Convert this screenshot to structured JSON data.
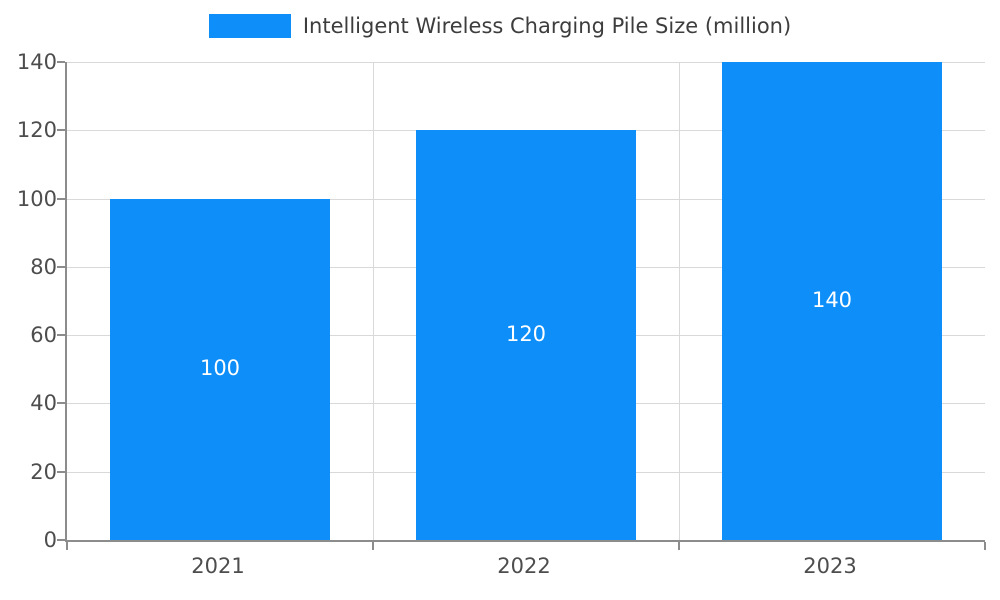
{
  "chart_data": {
    "type": "bar",
    "title": "Intelligent Wireless Charging Pile Size (million)",
    "categories": [
      "2021",
      "2022",
      "2023"
    ],
    "values": [
      100,
      120,
      140
    ],
    "xlabel": "",
    "ylabel": "",
    "ylim": [
      0,
      140
    ],
    "ytick_step": 20,
    "yticks": [
      0,
      20,
      40,
      60,
      80,
      100,
      120,
      140
    ],
    "grid": true,
    "legend_position": "top",
    "bar_color": "#0d8ef8",
    "bar_label_color": "#ffffff",
    "axis_color": "#8c8c8c",
    "grid_color": "#d9d9d9",
    "tick_label_color": "#4d4d4d"
  }
}
